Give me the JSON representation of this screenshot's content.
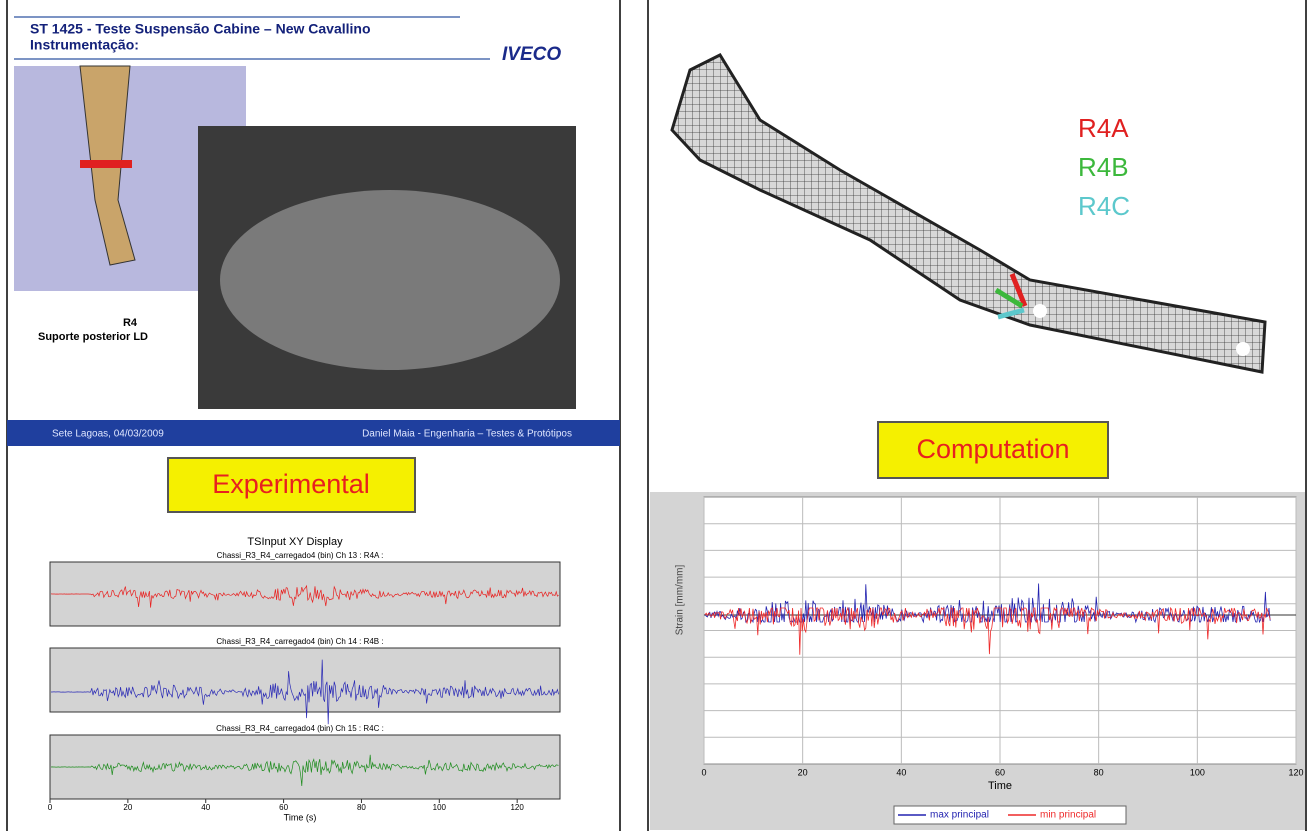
{
  "left": {
    "header": {
      "title_line1": "ST 1425 - Teste Suspensão Cabine – New Cavallino",
      "title_line2": "Instrumentação:",
      "logo": "IVECO"
    },
    "part_label": "R4",
    "part_desc": "Suporte posterior LD",
    "footer_left": "Sete Lagoas, 04/03/2009",
    "footer_right": "Daniel Maia - Engenharia – Testes & Protótipos",
    "badge": "Experimental",
    "plot": {
      "title": "TSInput XY Display",
      "channels": [
        {
          "title": "Chassi_R3_R4_carregado4 (bin)  Ch 13 : R4A :",
          "color": "#e8201f"
        },
        {
          "title": "Chassi_R3_R4_carregado4 (bin)  Ch 14 : R4B :",
          "color": "#2a2ab5"
        },
        {
          "title": "Chassi_R3_R4_carregado4 (bin)  Ch 15 : R4C :",
          "color": "#1e8c1e"
        }
      ],
      "xlim": [
        0,
        131
      ],
      "xticks": [
        0,
        20,
        40,
        60,
        80,
        100,
        120
      ],
      "xlabel": "Time (s)"
    }
  },
  "right": {
    "gauges": [
      {
        "label": "R4A",
        "color": "#e02020"
      },
      {
        "label": "R4B",
        "color": "#3cb83c"
      },
      {
        "label": "R4C",
        "color": "#5cc8cc"
      }
    ],
    "badge": "Computation",
    "plot": {
      "ylabel": "Strain [mm/mm]",
      "xlabel": "Time",
      "xlim": [
        0,
        120
      ],
      "xticks": [
        0,
        20,
        40,
        60,
        80,
        100,
        120
      ],
      "legend": [
        {
          "name": "max principal",
          "color": "#2323b0"
        },
        {
          "name": "min principal",
          "color": "#ee2a2a"
        }
      ]
    }
  }
}
